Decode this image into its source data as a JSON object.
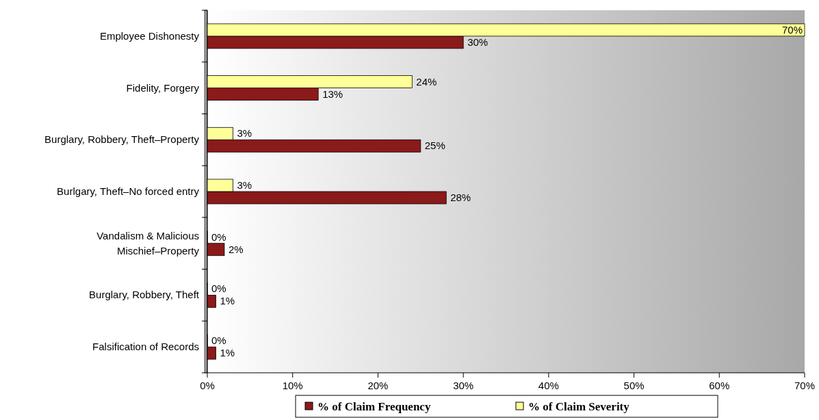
{
  "chart_data": {
    "type": "bar",
    "orientation": "horizontal",
    "categories": [
      "Employee Dishonesty",
      "Fidelity, Forgery",
      "Burglary, Robbery, Theft–Property",
      "Burlgary, Theft–No forced entry",
      "Vandalism & Malicious Mischief–Property",
      "Burglary, Robbery, Theft",
      "Falsification of Records"
    ],
    "series": [
      {
        "name": "% of Claim Frequency",
        "color": "#8b1a1a",
        "values": [
          30,
          13,
          25,
          28,
          2,
          1,
          1
        ],
        "value_labels": [
          "30%",
          "13%",
          "25%",
          "28%",
          "2%",
          "1%",
          "1%"
        ]
      },
      {
        "name": "% of Claim Severity",
        "color": "#ffff99",
        "values": [
          70,
          24,
          3,
          3,
          0,
          0,
          0
        ],
        "value_labels": [
          "70%",
          "24%",
          "3%",
          "3%",
          "0%",
          "0%",
          "0%"
        ]
      }
    ],
    "xlim": [
      0,
      70
    ],
    "xticks": [
      {
        "value": 0,
        "label": "0%"
      },
      {
        "value": 10,
        "label": "10%"
      },
      {
        "value": 20,
        "label": "20%"
      },
      {
        "value": 30,
        "label": "30%"
      },
      {
        "value": 40,
        "label": "40%"
      },
      {
        "value": 50,
        "label": "50%"
      },
      {
        "value": 60,
        "label": "60%"
      },
      {
        "value": 70,
        "label": "70%"
      }
    ],
    "grid": false,
    "legend": "bottom"
  }
}
